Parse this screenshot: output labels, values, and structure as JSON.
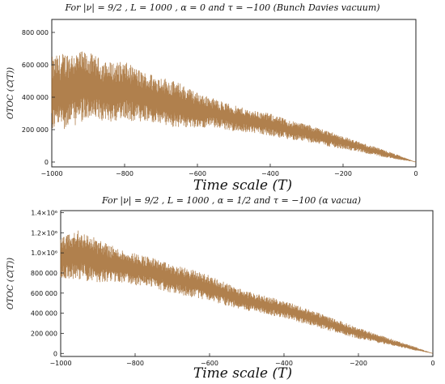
{
  "chart_data": [
    {
      "type": "scatter",
      "title": "For |ν| = 9/2 , L = 1000 , α = 0 and τ = −100 (Bunch Davies vacuum)",
      "xlabel": "Time scale  (T)",
      "ylabel": "OTOC (ℂ(T))",
      "xlim": [
        -1000,
        0
      ],
      "ylim": [
        -30000,
        880000
      ],
      "x_ticks": [
        -1000,
        -800,
        -600,
        -400,
        -200,
        0
      ],
      "x_tick_labels": [
        "−1000",
        "−800",
        "−600",
        "−400",
        "−200",
        "0"
      ],
      "y_ticks": [
        0,
        200000,
        400000,
        600000,
        800000
      ],
      "y_tick_labels": [
        "0",
        "200 000",
        "400 000",
        "600 000",
        "800 000"
      ],
      "grid": false,
      "color": "#a26a2e",
      "series": [
        {
          "x": [
            -1000,
            -950,
            -900,
            -850,
            -800,
            -750,
            -700,
            -650,
            -600,
            -550,
            -500,
            -450,
            -400,
            -350,
            -300,
            -250,
            -200,
            -150,
            -100,
            -50,
            0
          ],
          "y": [
            420000,
            450000,
            470000,
            430000,
            440000,
            400000,
            380000,
            350000,
            320000,
            300000,
            270000,
            250000,
            230000,
            200000,
            180000,
            150000,
            120000,
            90000,
            60000,
            30000,
            0
          ],
          "spread": [
            230000,
            240000,
            210000,
            190000,
            180000,
            160000,
            150000,
            140000,
            110000,
            90000,
            80000,
            70000,
            70000,
            60000,
            55000,
            50000,
            40000,
            30000,
            25000,
            15000,
            0
          ]
        }
      ]
    },
    {
      "type": "scatter",
      "title": "For |ν| = 9/2 , L = 1000 , α = 1/2 and τ = −100 (α vacua)",
      "xlabel": "Time scale  (T)",
      "ylabel": "OTOC (ℂ(T))",
      "xlim": [
        -1000,
        0
      ],
      "ylim": [
        -30000,
        1420000
      ],
      "x_ticks": [
        -1000,
        -800,
        -600,
        -400,
        -200,
        0
      ],
      "x_tick_labels": [
        "−1000",
        "−800",
        "−600",
        "−400",
        "−200",
        "0"
      ],
      "y_ticks": [
        0,
        200000,
        400000,
        600000,
        800000,
        1000000,
        1200000,
        1400000
      ],
      "y_tick_labels": [
        "0",
        "200 000",
        "400 000",
        "600 000",
        "800 000",
        "1.0×10⁶",
        "1.2×10⁶",
        "1.4×10⁶"
      ],
      "grid": false,
      "color": "#a26a2e",
      "series": [
        {
          "x": [
            -1000,
            -950,
            -900,
            -850,
            -800,
            -750,
            -700,
            -650,
            -600,
            -550,
            -500,
            -450,
            -400,
            -350,
            -300,
            -250,
            -200,
            -150,
            -100,
            -50,
            0
          ],
          "y": [
            950000,
            980000,
            920000,
            880000,
            840000,
            800000,
            740000,
            700000,
            650000,
            580000,
            520000,
            480000,
            440000,
            380000,
            320000,
            260000,
            200000,
            150000,
            100000,
            50000,
            0
          ],
          "spread": [
            200000,
            250000,
            220000,
            170000,
            160000,
            150000,
            140000,
            140000,
            130000,
            110000,
            100000,
            90000,
            90000,
            80000,
            75000,
            65000,
            55000,
            45000,
            30000,
            20000,
            0
          ]
        }
      ]
    }
  ]
}
